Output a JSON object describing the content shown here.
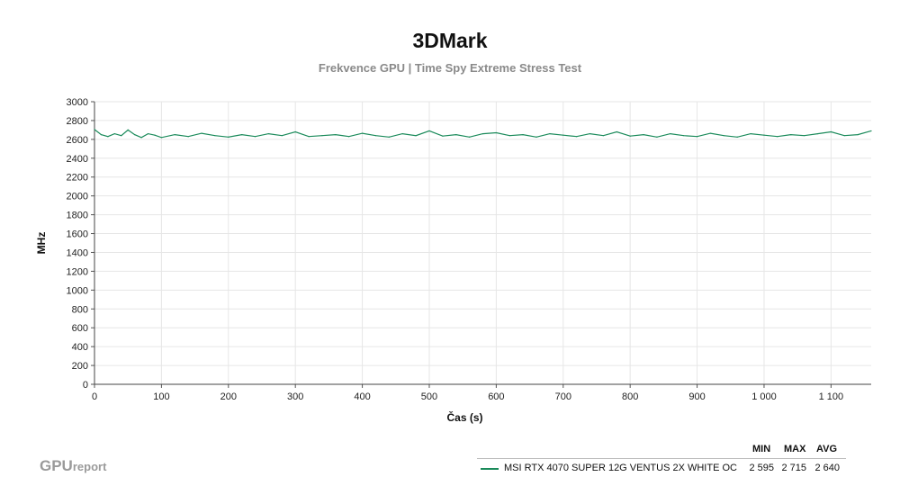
{
  "chart_data": {
    "type": "line",
    "title": "3DMark",
    "subtitle": "Frekvence GPU | Time Spy Extreme Stress Test",
    "xlabel": "Čas (s)",
    "ylabel": "MHz",
    "xlim": [
      0,
      1160
    ],
    "ylim": [
      0,
      3000
    ],
    "x_ticks": [
      0,
      100,
      200,
      300,
      400,
      500,
      600,
      700,
      800,
      900,
      1000,
      1100
    ],
    "x_tick_labels": [
      "0",
      "100",
      "200",
      "300",
      "400",
      "500",
      "600",
      "700",
      "800",
      "900",
      "1 000",
      "1 100"
    ],
    "y_ticks": [
      0,
      200,
      400,
      600,
      800,
      1000,
      1200,
      1400,
      1600,
      1800,
      2000,
      2200,
      2400,
      2600,
      2800,
      3000
    ],
    "grid": true,
    "series": [
      {
        "name": "MSI RTX 4070 SUPER 12G VENTUS 2X WHITE OC",
        "color": "#1a8a5a",
        "x": [
          0,
          10,
          20,
          30,
          40,
          50,
          60,
          70,
          80,
          90,
          100,
          120,
          140,
          160,
          180,
          200,
          220,
          240,
          260,
          280,
          300,
          320,
          340,
          360,
          380,
          400,
          420,
          440,
          460,
          480,
          500,
          520,
          540,
          560,
          580,
          600,
          620,
          640,
          660,
          680,
          700,
          720,
          740,
          760,
          780,
          800,
          820,
          840,
          860,
          880,
          900,
          920,
          940,
          960,
          980,
          1000,
          1020,
          1040,
          1060,
          1080,
          1100,
          1120,
          1140,
          1160
        ],
        "values": [
          2705,
          2650,
          2630,
          2660,
          2640,
          2700,
          2650,
          2620,
          2660,
          2645,
          2620,
          2650,
          2630,
          2665,
          2640,
          2625,
          2650,
          2630,
          2660,
          2640,
          2680,
          2630,
          2640,
          2650,
          2630,
          2665,
          2640,
          2625,
          2660,
          2640,
          2690,
          2635,
          2650,
          2625,
          2660,
          2670,
          2640,
          2650,
          2625,
          2660,
          2645,
          2630,
          2660,
          2640,
          2680,
          2635,
          2650,
          2625,
          2660,
          2640,
          2630,
          2665,
          2640,
          2625,
          2660,
          2645,
          2630,
          2650,
          2640,
          2660,
          2680,
          2640,
          2650,
          2690
        ]
      }
    ]
  },
  "legend": {
    "headers": {
      "min": "MIN",
      "max": "MAX",
      "avg": "AVG"
    },
    "rows": [
      {
        "name": "MSI RTX 4070 SUPER 12G VENTUS 2X WHITE OC",
        "min": "2 595",
        "max": "2 715",
        "avg": "2 640"
      }
    ]
  },
  "logo": {
    "main": "GPU",
    "suffix": "report"
  }
}
